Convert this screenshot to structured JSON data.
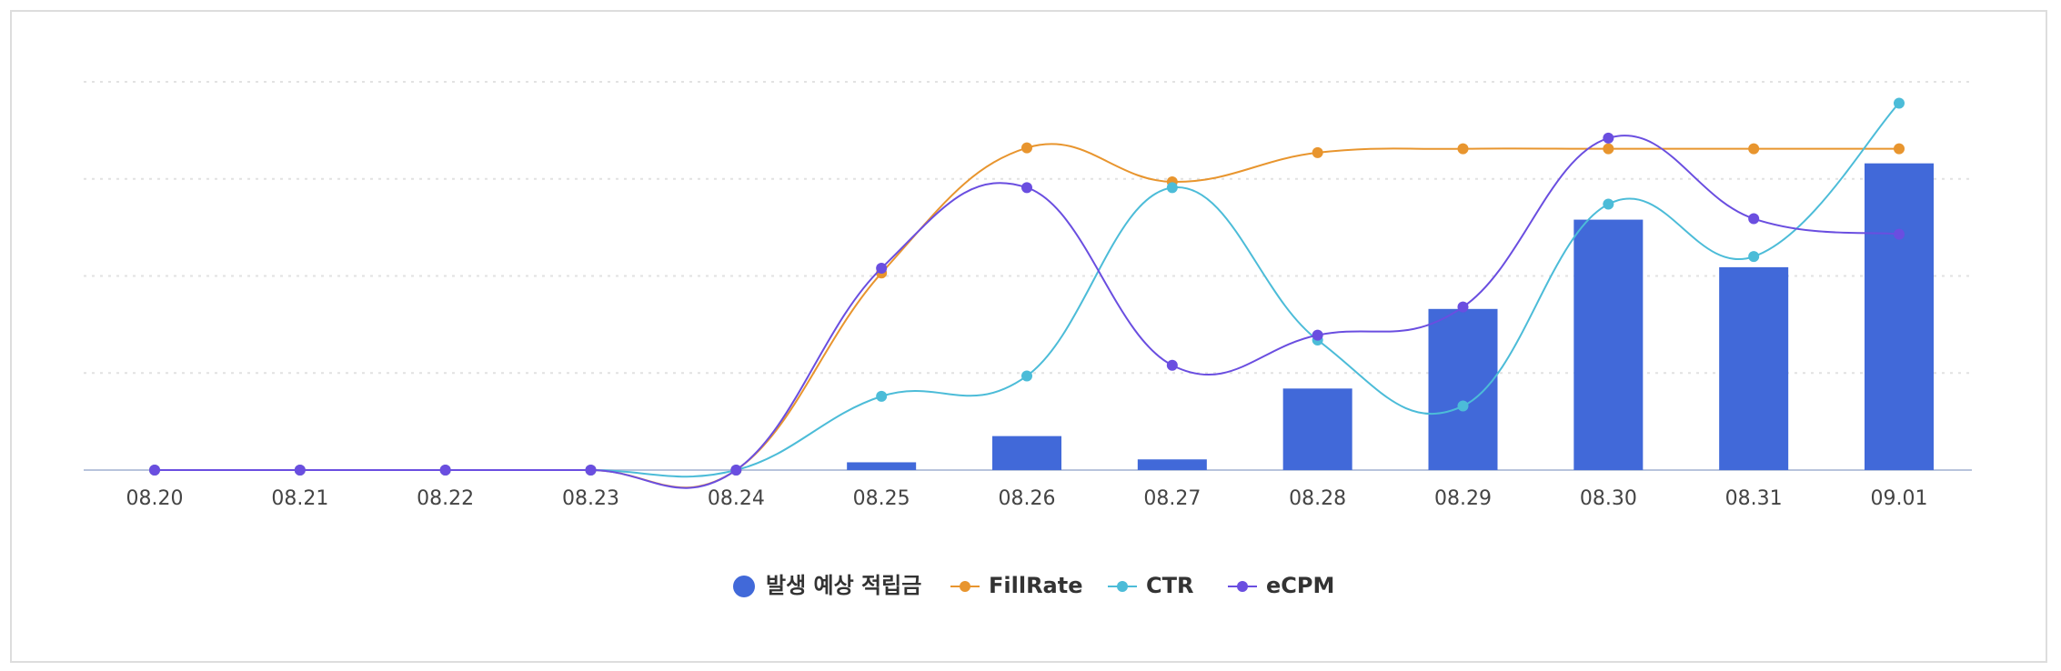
{
  "chart_data": {
    "type": "bar-line",
    "categories": [
      "08.20",
      "08.21",
      "08.22",
      "08.23",
      "08.24",
      "08.25",
      "08.26",
      "08.27",
      "08.28",
      "08.29",
      "08.30",
      "08.31",
      "09.01"
    ],
    "ylim": [
      0,
      4
    ],
    "yticks": [
      0,
      1,
      2,
      3,
      4
    ],
    "grid": true,
    "series": [
      {
        "name": "발생 예상 적립금",
        "type": "bar",
        "color": "#4169d9",
        "values": [
          0,
          0,
          0,
          0,
          0,
          0.08,
          0.35,
          0.11,
          0.84,
          1.66,
          2.58,
          2.09,
          3.16
        ]
      },
      {
        "name": "FillRate",
        "type": "line",
        "color": "#e8952e",
        "values": [
          0,
          0,
          0,
          0,
          0,
          2.03,
          3.32,
          2.97,
          3.27,
          3.31,
          3.31,
          3.31,
          3.31
        ]
      },
      {
        "name": "CTR",
        "type": "line",
        "color": "#4cbcd8",
        "values": [
          0,
          0,
          0,
          0,
          0,
          0.76,
          0.97,
          2.91,
          1.34,
          0.66,
          2.74,
          2.2,
          3.78
        ]
      },
      {
        "name": "eCPM",
        "type": "line",
        "color": "#6a4ee0",
        "values": [
          0,
          0,
          0,
          0,
          0,
          2.08,
          2.91,
          1.08,
          1.39,
          1.68,
          3.42,
          2.59,
          2.43
        ]
      }
    ]
  }
}
